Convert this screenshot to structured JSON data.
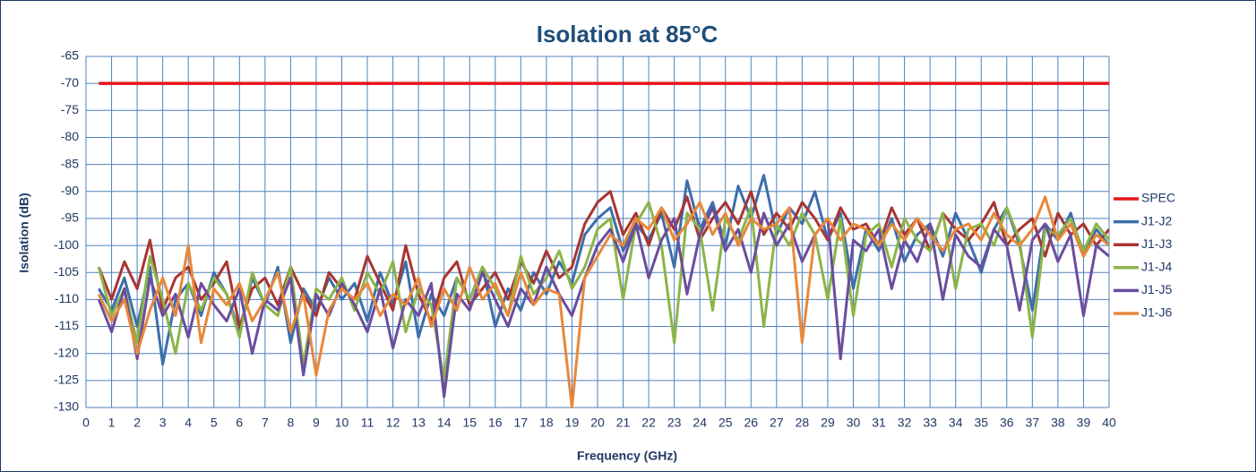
{
  "chart_data": {
    "type": "line",
    "title": "Isolation at 85°C",
    "x_label": "Frequency (GHz)",
    "y_label": "Isolation (dB)",
    "xlim": [
      0,
      40
    ],
    "ylim": [
      -130,
      -65
    ],
    "xticks": [
      0,
      1,
      2,
      3,
      4,
      5,
      6,
      7,
      8,
      9,
      10,
      11,
      12,
      13,
      14,
      15,
      16,
      17,
      18,
      19,
      20,
      21,
      22,
      23,
      24,
      25,
      26,
      27,
      28,
      29,
      30,
      31,
      32,
      33,
      34,
      35,
      36,
      37,
      38,
      39,
      40
    ],
    "yticks": [
      -130,
      -125,
      -120,
      -115,
      -110,
      -105,
      -100,
      -95,
      -90,
      -85,
      -80,
      -75,
      -70,
      -65
    ],
    "grid": true,
    "legend": "right",
    "x": [
      0.5,
      1,
      1.5,
      2,
      2.5,
      3,
      3.5,
      4,
      4.5,
      5,
      5.5,
      6,
      6.5,
      7,
      7.5,
      8,
      8.5,
      9,
      9.5,
      10,
      10.5,
      11,
      11.5,
      12,
      12.5,
      13,
      13.5,
      14,
      14.5,
      15,
      15.5,
      16,
      16.5,
      17,
      17.5,
      18,
      18.5,
      19,
      19.5,
      20,
      20.5,
      21,
      21.5,
      22,
      22.5,
      23,
      23.5,
      24,
      24.5,
      25,
      25.5,
      26,
      26.5,
      27,
      27.5,
      28,
      28.5,
      29,
      29.5,
      30,
      30.5,
      31,
      31.5,
      32,
      32.5,
      33,
      33.5,
      34,
      34.5,
      35,
      35.5,
      36,
      36.5,
      37,
      37.5,
      38,
      38.5,
      39,
      39.5,
      40
    ],
    "series": [
      {
        "name": "SPEC",
        "color": "#e8141c",
        "values": [
          -70,
          -70,
          -70,
          -70,
          -70,
          -70,
          -70,
          -70,
          -70,
          -70,
          -70,
          -70,
          -70,
          -70,
          -70,
          -70,
          -70,
          -70,
          -70,
          -70,
          -70,
          -70,
          -70,
          -70,
          -70,
          -70,
          -70,
          -70,
          -70,
          -70,
          -70,
          -70,
          -70,
          -70,
          -70,
          -70,
          -70,
          -70,
          -70,
          -70,
          -70,
          -70,
          -70,
          -70,
          -70,
          -70,
          -70,
          -70,
          -70,
          -70,
          -70,
          -70,
          -70,
          -70,
          -70,
          -70,
          -70,
          -70,
          -70,
          -70,
          -70,
          -70,
          -70,
          -70,
          -70,
          -70,
          -70,
          -70,
          -70,
          -70,
          -70,
          -70,
          -70,
          -70,
          -70,
          -70,
          -70,
          -70,
          -70,
          -70
        ]
      },
      {
        "name": "J1-J2",
        "color": "#3d6eaa",
        "values": [
          -108,
          -112,
          -106,
          -115,
          -104,
          -122,
          -110,
          -107,
          -113,
          -105,
          -109,
          -116,
          -106,
          -111,
          -104,
          -118,
          -108,
          -112,
          -106,
          -110,
          -107,
          -114,
          -105,
          -111,
          -103,
          -117,
          -109,
          -113,
          -106,
          -110,
          -104,
          -115,
          -108,
          -112,
          -105,
          -109,
          -103,
          -107,
          -98,
          -95,
          -93,
          -101,
          -96,
          -99,
          -94,
          -104,
          -88,
          -97,
          -92,
          -100,
          -89,
          -95,
          -87,
          -98,
          -93,
          -96,
          -90,
          -99,
          -94,
          -108,
          -97,
          -101,
          -95,
          -103,
          -98,
          -96,
          -102,
          -94,
          -99,
          -105,
          -97,
          -93,
          -100,
          -112,
          -96,
          -99,
          -94,
          -102,
          -97,
          -100
        ]
      },
      {
        "name": "J1-J3",
        "color": "#a83532",
        "values": [
          -104,
          -110,
          -103,
          -108,
          -99,
          -112,
          -106,
          -104,
          -110,
          -107,
          -103,
          -115,
          -108,
          -106,
          -111,
          -104,
          -109,
          -113,
          -105,
          -108,
          -110,
          -102,
          -107,
          -112,
          -100,
          -109,
          -114,
          -106,
          -103,
          -111,
          -108,
          -105,
          -110,
          -103,
          -107,
          -101,
          -106,
          -104,
          -96,
          -92,
          -90,
          -98,
          -94,
          -100,
          -93,
          -97,
          -91,
          -99,
          -95,
          -92,
          -96,
          -90,
          -98,
          -94,
          -97,
          -92,
          -95,
          -99,
          -93,
          -97,
          -96,
          -100,
          -93,
          -98,
          -95,
          -101,
          -94,
          -97,
          -99,
          -96,
          -92,
          -100,
          -97,
          -95,
          -102,
          -94,
          -98,
          -96,
          -100,
          -97
        ]
      },
      {
        "name": "J1-J4",
        "color": "#8cb449",
        "values": [
          -104,
          -113,
          -108,
          -118,
          -102,
          -110,
          -120,
          -107,
          -112,
          -106,
          -109,
          -117,
          -105,
          -111,
          -113,
          -104,
          -122,
          -108,
          -110,
          -106,
          -112,
          -105,
          -109,
          -103,
          -116,
          -108,
          -111,
          -125,
          -106,
          -110,
          -104,
          -108,
          -113,
          -102,
          -109,
          -106,
          -101,
          -108,
          -104,
          -97,
          -95,
          -110,
          -96,
          -92,
          -100,
          -118,
          -94,
          -97,
          -112,
          -95,
          -99,
          -93,
          -115,
          -96,
          -100,
          -94,
          -98,
          -110,
          -95,
          -113,
          -98,
          -96,
          -104,
          -95,
          -99,
          -101,
          -94,
          -108,
          -97,
          -96,
          -100,
          -93,
          -99,
          -117,
          -97,
          -98,
          -95,
          -101,
          -96,
          -99
        ]
      },
      {
        "name": "J1-J5",
        "color": "#6b4d9e",
        "values": [
          -110,
          -116,
          -108,
          -121,
          -106,
          -113,
          -109,
          -117,
          -107,
          -111,
          -114,
          -108,
          -120,
          -110,
          -112,
          -106,
          -124,
          -109,
          -113,
          -107,
          -111,
          -116,
          -108,
          -119,
          -110,
          -113,
          -107,
          -128,
          -109,
          -112,
          -105,
          -110,
          -115,
          -108,
          -111,
          -104,
          -109,
          -113,
          -106,
          -100,
          -97,
          -103,
          -96,
          -106,
          -99,
          -95,
          -109,
          -98,
          -93,
          -101,
          -97,
          -105,
          -94,
          -100,
          -96,
          -103,
          -98,
          -95,
          -121,
          -99,
          -101,
          -97,
          -108,
          -99,
          -103,
          -96,
          -110,
          -98,
          -102,
          -104,
          -97,
          -100,
          -112,
          -99,
          -96,
          -103,
          -98,
          -113,
          -100,
          -102
        ]
      },
      {
        "name": "J1-J6",
        "color": "#e8883a",
        "values": [
          -109,
          -114,
          -110,
          -120,
          -112,
          -106,
          -113,
          -100,
          -118,
          -108,
          -111,
          -107,
          -114,
          -110,
          -105,
          -116,
          -109,
          -124,
          -112,
          -108,
          -110,
          -107,
          -113,
          -109,
          -111,
          -106,
          -115,
          -108,
          -112,
          -104,
          -110,
          -107,
          -113,
          -105,
          -111,
          -108,
          -109,
          -130,
          -106,
          -102,
          -98,
          -100,
          -95,
          -97,
          -93,
          -99,
          -96,
          -92,
          -98,
          -94,
          -100,
          -95,
          -97,
          -96,
          -93,
          -118,
          -98,
          -95,
          -99,
          -96,
          -97,
          -100,
          -96,
          -99,
          -95,
          -98,
          -101,
          -97,
          -96,
          -99,
          -94,
          -98,
          -100,
          -97,
          -91,
          -99,
          -96,
          -102,
          -98,
          -100
        ]
      }
    ]
  }
}
